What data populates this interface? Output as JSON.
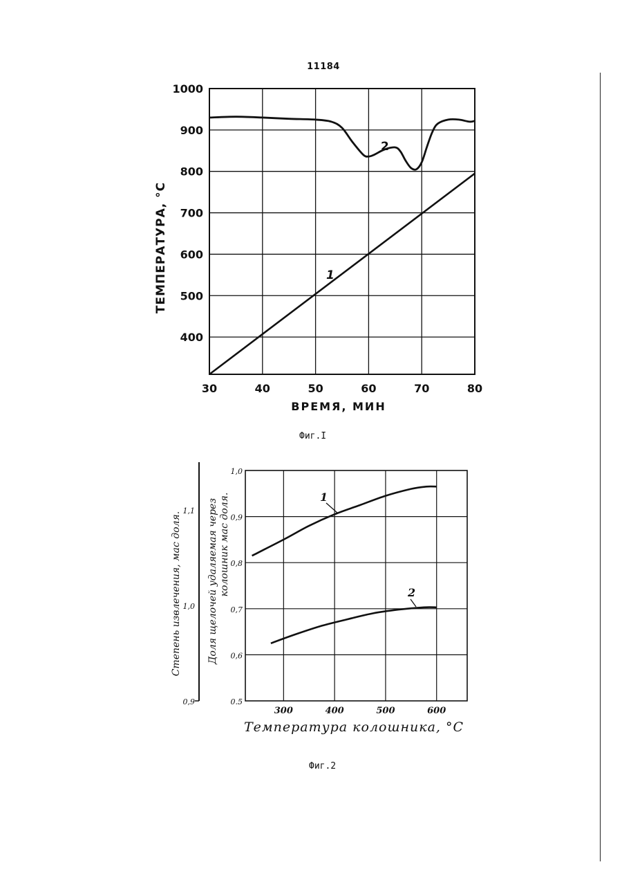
{
  "page_number": "11184",
  "figure1": {
    "caption": "Фиг.I",
    "ylabel": "ТЕМПЕРАТУРА, °С",
    "xlabel": "ВРЕМЯ, МИН"
  },
  "figure2": {
    "caption": "Фиг.2",
    "xlabel": "Температура колошника, °С",
    "ylabel_left": "Степень извлечения, мас доля.",
    "ylabel_right_line1": "Доля щелочей удаляемая через",
    "ylabel_right_line2": "колошник мас доля."
  },
  "colors": {
    "ink": "#111111",
    "paper": "#ffffff"
  },
  "chart_data": [
    {
      "type": "line",
      "x_ticks": [
        "30",
        "40",
        "50",
        "60",
        "70",
        "80"
      ],
      "y_ticks": [
        "400",
        "500",
        "600",
        "700",
        "800",
        "900",
        "1000"
      ],
      "xlim": [
        30,
        80
      ],
      "ylim": [
        310,
        1000
      ],
      "grid": true,
      "series": [
        {
          "name": "1",
          "x": [
            30,
            80
          ],
          "y": [
            310,
            795
          ]
        },
        {
          "name": "2",
          "x": [
            30,
            35,
            40,
            45,
            50,
            53,
            55,
            57,
            59,
            60,
            61,
            63,
            65,
            66,
            67,
            68,
            69,
            70,
            71,
            72,
            73,
            75,
            77,
            79,
            80
          ],
          "y": [
            930,
            932,
            930,
            927,
            925,
            920,
            905,
            870,
            840,
            836,
            840,
            853,
            858,
            848,
            825,
            808,
            805,
            822,
            860,
            895,
            915,
            925,
            925,
            920,
            922
          ]
        }
      ]
    },
    {
      "type": "line",
      "x_ticks": [
        "300",
        "400",
        "500",
        "600"
      ],
      "y_ticks_right": [
        "0.5",
        "0,6",
        "0,7",
        "0,8",
        "0,9",
        "1,0"
      ],
      "y_ticks_left": [
        "0,9",
        "1,0",
        "1,1"
      ],
      "xlim": [
        225,
        660
      ],
      "ylim": [
        0.5,
        1.0
      ],
      "y_left_range": [
        0.9,
        1.15
      ],
      "grid": true,
      "series": [
        {
          "name": "1",
          "x": [
            238,
            300,
            350,
            400,
            450,
            500,
            550,
            580,
            600
          ],
          "y": [
            0.815,
            0.85,
            0.88,
            0.905,
            0.925,
            0.945,
            0.96,
            0.965,
            0.965
          ]
        },
        {
          "name": "2",
          "x": [
            275,
            325,
            375,
            425,
            475,
            525,
            575,
            600
          ],
          "y": [
            0.625,
            0.645,
            0.663,
            0.677,
            0.69,
            0.698,
            0.703,
            0.703
          ]
        }
      ]
    }
  ]
}
